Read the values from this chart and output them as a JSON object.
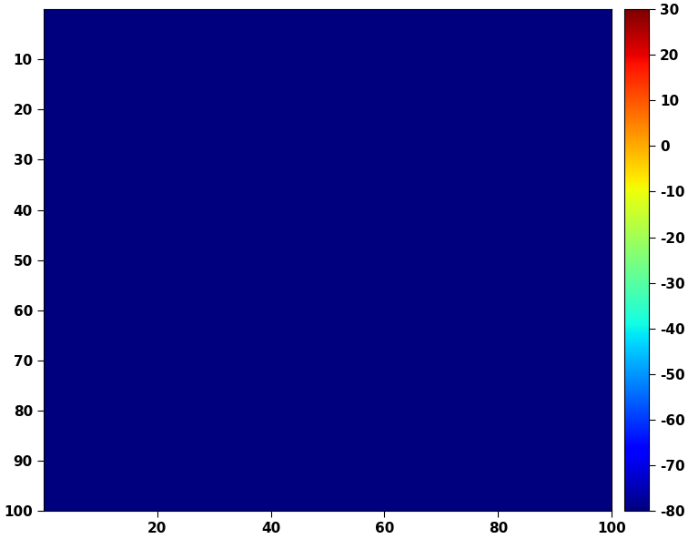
{
  "xlim": [
    0,
    100
  ],
  "ylim": [
    0,
    100
  ],
  "xticks": [
    20,
    40,
    60,
    80,
    100
  ],
  "yticks": [
    10,
    20,
    30,
    40,
    50,
    60,
    70,
    80,
    90,
    100
  ],
  "colorbar_min": -80,
  "colorbar_max": 30,
  "colorbar_ticks": [
    30,
    20,
    10,
    0,
    -10,
    -20,
    -30,
    -40,
    -50,
    -60,
    -70,
    -80
  ],
  "data_value": -80,
  "grid_size": 100,
  "background_color": "#ffffff",
  "cmap": "jet",
  "figsize": [
    7.56,
    5.92
  ],
  "dpi": 100,
  "tick_fontsize": 11,
  "tick_fontweight": "bold"
}
